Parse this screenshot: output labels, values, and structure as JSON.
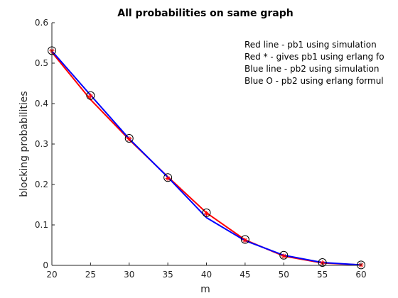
{
  "chart_data": {
    "type": "line",
    "title": "All probabilities on same graph",
    "xlabel": "m",
    "ylabel": "blocking probabilities",
    "xlim": [
      20,
      60
    ],
    "ylim": [
      0,
      0.6
    ],
    "xticks": [
      "20",
      "25",
      "30",
      "35",
      "40",
      "45",
      "50",
      "55",
      "60"
    ],
    "yticks": [
      "0",
      "0.1",
      "0.2",
      "0.3",
      "0.4",
      "0.5",
      "0.6"
    ],
    "x": [
      20,
      25,
      30,
      35,
      40,
      45,
      50,
      55,
      60
    ],
    "grid": false,
    "series": [
      {
        "kind": "line",
        "color": "#ff0000",
        "values": [
          0.527,
          0.41,
          0.311,
          0.219,
          0.13,
          0.063,
          0.023,
          0.006,
          0.001
        ]
      },
      {
        "kind": "marker-star",
        "color": "#ff0000",
        "values": [
          0.531,
          0.419,
          0.313,
          0.215,
          0.128,
          0.062,
          0.023,
          0.006,
          0.001
        ]
      },
      {
        "kind": "line",
        "color": "#0000ff",
        "values": [
          0.53,
          0.421,
          0.313,
          0.218,
          0.118,
          0.061,
          0.025,
          0.007,
          0.001
        ]
      },
      {
        "kind": "marker-circle",
        "color": "#000000",
        "values": [
          0.531,
          0.42,
          0.314,
          0.217,
          0.13,
          0.064,
          0.025,
          0.007,
          0.001
        ]
      }
    ],
    "annotations": [
      "Red line - pb1 using simulation",
      "Red * - gives pb1 using erlang fo",
      "Blue line - pb2 using simulation",
      "Blue O - pb2 using erlang formul"
    ]
  }
}
